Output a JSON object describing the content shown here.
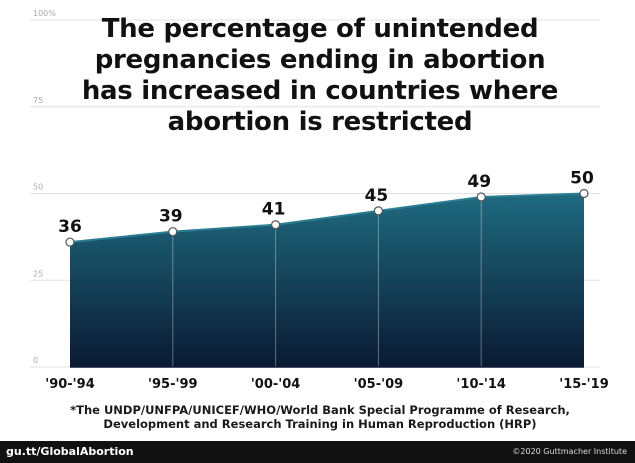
{
  "chart_data": {
    "type": "area",
    "title_lines": [
      "The percentage of unintended",
      "pregnancies ending in abortion",
      "has increased in countries where",
      "abortion is restricted"
    ],
    "categories": [
      "'90-'94",
      "'95-'99",
      "'00-'04",
      "'05-'09",
      "'10-'14",
      "'15-'19"
    ],
    "values": [
      36,
      39,
      41,
      45,
      49,
      50
    ],
    "data_labels": [
      "36",
      "39",
      "41",
      "45",
      "49",
      "50"
    ],
    "y_ticks": [
      "0",
      "25",
      "50",
      "75",
      "100%"
    ],
    "y_tick_values": [
      0,
      25,
      50,
      75,
      100
    ],
    "ylim": [
      0,
      100
    ],
    "grid": true,
    "fill_colors": [
      "#1f6b80",
      "#0a1a33"
    ]
  },
  "footnote_lines": [
    "*The UNDP/UNFPA/UNICEF/WHO/World Bank Special Programme of Research,",
    "Development and Research Training in Human Reproduction (HRP)"
  ],
  "footer": {
    "left": "gu.tt/GlobalAbortion",
    "right": "©2020 Guttmacher Institute"
  }
}
